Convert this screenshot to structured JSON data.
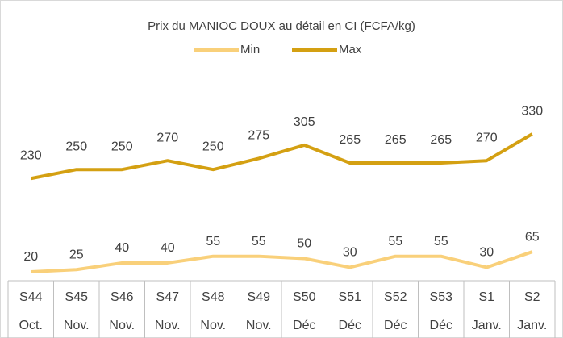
{
  "chart_data": {
    "type": "line",
    "title": "Prix du MANIOC DOUX  au détail en CI (FCFA/kg)",
    "categories": [
      "S44",
      "S45",
      "S46",
      "S47",
      "S48",
      "S49",
      "S50",
      "S51",
      "S52",
      "S53",
      "S1",
      "S2"
    ],
    "months": [
      "Oct.",
      "Nov.",
      "Nov.",
      "Nov.",
      "Nov.",
      "Nov.",
      "Déc",
      "Déc",
      "Déc",
      "Déc",
      "Janv.",
      "Janv."
    ],
    "series": [
      {
        "name": "Min",
        "color": "#f9d07a",
        "values": [
          20,
          25,
          40,
          40,
          55,
          55,
          50,
          30,
          55,
          55,
          30,
          65
        ]
      },
      {
        "name": "Max",
        "color": "#d4a012",
        "values": [
          230,
          250,
          250,
          270,
          250,
          275,
          305,
          265,
          265,
          265,
          270,
          330
        ]
      }
    ],
    "ylim": [
      0,
      450
    ],
    "legend": "top"
  }
}
